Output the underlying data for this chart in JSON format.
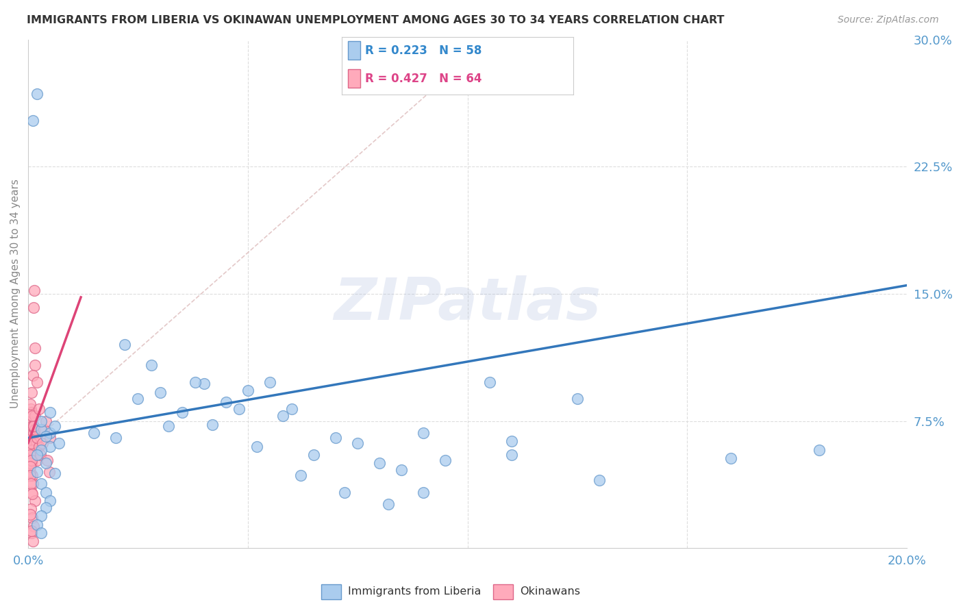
{
  "title": "IMMIGRANTS FROM LIBERIA VS OKINAWAN UNEMPLOYMENT AMONG AGES 30 TO 34 YEARS CORRELATION CHART",
  "source": "Source: ZipAtlas.com",
  "ylabel": "Unemployment Among Ages 30 to 34 years",
  "xlim": [
    0.0,
    0.2
  ],
  "ylim": [
    0.0,
    0.3
  ],
  "blue_R": 0.223,
  "blue_N": 58,
  "pink_R": 0.427,
  "pink_N": 64,
  "blue_color": "#aaccee",
  "pink_color": "#ffaabb",
  "blue_edge_color": "#6699cc",
  "pink_edge_color": "#dd6688",
  "blue_line_color": "#3377bb",
  "pink_line_color": "#dd4477",
  "diag_line_color": "#ddaaaa",
  "watermark": "ZIPatlas",
  "legend_label_blue": "Immigrants from Liberia",
  "legend_label_pink": "Okinawans",
  "blue_line_x": [
    0.0,
    0.2
  ],
  "blue_line_y": [
    0.065,
    0.155
  ],
  "pink_line_x": [
    0.0,
    0.012
  ],
  "pink_line_y": [
    0.062,
    0.148
  ],
  "diag_line_x": [
    0.045,
    0.115
  ],
  "diag_line_y": [
    0.23,
    0.295
  ],
  "blue_scatter_x": [
    0.003,
    0.005,
    0.003,
    0.005,
    0.007,
    0.004,
    0.006,
    0.003,
    0.002,
    0.004,
    0.005,
    0.002,
    0.006,
    0.003,
    0.004,
    0.005,
    0.004,
    0.003,
    0.002,
    0.003,
    0.015,
    0.02,
    0.025,
    0.03,
    0.035,
    0.04,
    0.045,
    0.05,
    0.055,
    0.06,
    0.065,
    0.07,
    0.075,
    0.08,
    0.085,
    0.022,
    0.028,
    0.038,
    0.048,
    0.058,
    0.032,
    0.042,
    0.052,
    0.062,
    0.072,
    0.082,
    0.095,
    0.11,
    0.13,
    0.16,
    0.18,
    0.09,
    0.105,
    0.125,
    0.09,
    0.002,
    0.001,
    0.11
  ],
  "blue_scatter_y": [
    0.07,
    0.068,
    0.075,
    0.06,
    0.062,
    0.066,
    0.072,
    0.058,
    0.055,
    0.05,
    0.08,
    0.045,
    0.044,
    0.038,
    0.033,
    0.028,
    0.024,
    0.019,
    0.014,
    0.009,
    0.068,
    0.065,
    0.088,
    0.092,
    0.08,
    0.097,
    0.086,
    0.093,
    0.098,
    0.082,
    0.055,
    0.065,
    0.062,
    0.05,
    0.046,
    0.12,
    0.108,
    0.098,
    0.082,
    0.078,
    0.072,
    0.073,
    0.06,
    0.043,
    0.033,
    0.026,
    0.052,
    0.063,
    0.04,
    0.053,
    0.058,
    0.068,
    0.098,
    0.088,
    0.033,
    0.268,
    0.252,
    0.055
  ],
  "pink_scatter_x": [
    0.0005,
    0.001,
    0.0008,
    0.0015,
    0.0006,
    0.0009,
    0.0012,
    0.0007,
    0.001,
    0.0005,
    0.0008,
    0.0005,
    0.0012,
    0.0009,
    0.0005,
    0.0006,
    0.0009,
    0.0005,
    0.0008,
    0.0004,
    0.0005,
    0.0008,
    0.0005,
    0.0004,
    0.001,
    0.0008,
    0.0004,
    0.0015,
    0.001,
    0.0007,
    0.0018,
    0.0013,
    0.0009,
    0.002,
    0.0016,
    0.0013,
    0.0009,
    0.0007,
    0.0005,
    0.0004,
    0.0025,
    0.002,
    0.0016,
    0.0013,
    0.0009,
    0.0007,
    0.0004,
    0.0004,
    0.0006,
    0.0009,
    0.0013,
    0.0016,
    0.002,
    0.0024,
    0.0028,
    0.0032,
    0.0036,
    0.004,
    0.0044,
    0.0048,
    0.005,
    0.0014,
    0.0004,
    0.0007
  ],
  "pink_scatter_y": [
    0.048,
    0.038,
    0.033,
    0.028,
    0.023,
    0.018,
    0.013,
    0.009,
    0.004,
    0.052,
    0.058,
    0.063,
    0.068,
    0.072,
    0.078,
    0.082,
    0.043,
    0.058,
    0.065,
    0.07,
    0.075,
    0.08,
    0.085,
    0.06,
    0.055,
    0.05,
    0.045,
    0.108,
    0.102,
    0.092,
    0.062,
    0.068,
    0.072,
    0.052,
    0.078,
    0.072,
    0.058,
    0.062,
    0.055,
    0.05,
    0.06,
    0.065,
    0.07,
    0.072,
    0.078,
    0.052,
    0.048,
    0.043,
    0.038,
    0.032,
    0.142,
    0.118,
    0.098,
    0.082,
    0.055,
    0.062,
    0.07,
    0.075,
    0.052,
    0.045,
    0.065,
    0.152,
    0.02,
    0.01
  ]
}
